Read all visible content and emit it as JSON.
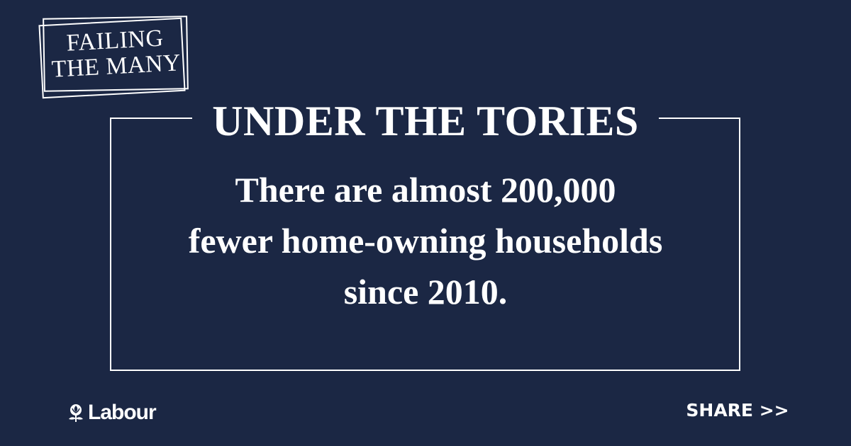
{
  "logo": {
    "line1": "FAILING",
    "line2": "THE MANY"
  },
  "headline": "UNDER THE TORIES",
  "statement": {
    "line1": "There are almost 200,000",
    "line2": "fewer home-owning households",
    "line3": "since 2010."
  },
  "footer": {
    "party_name": "Labour",
    "share_label": "SHARE >>"
  },
  "colors": {
    "background": "#1b2744",
    "text": "#ffffff"
  }
}
